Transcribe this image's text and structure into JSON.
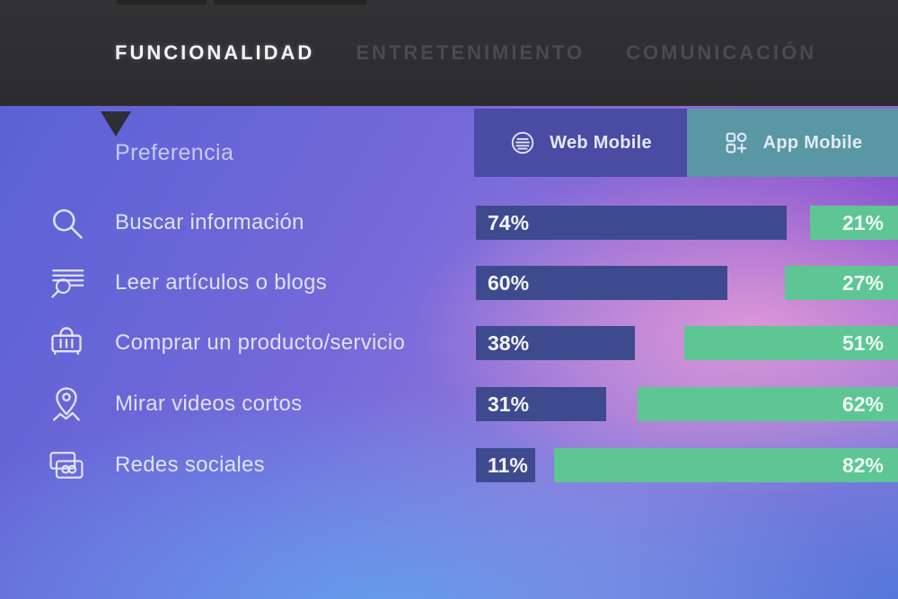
{
  "header": {
    "tabs": [
      {
        "label": "FUNCIONALIDAD",
        "active": true
      },
      {
        "label": "ENTRETENIMIENTO",
        "active": false
      },
      {
        "label": "COMUNICACIÓN",
        "active": false
      }
    ]
  },
  "section_title": "Preferencia",
  "legend": [
    {
      "label": "Web Mobile",
      "icon": "web-mobile-lines-icon",
      "color": "#4a4ba3"
    },
    {
      "label": "App Mobile",
      "icon": "app-mobile-grid-icon",
      "color": "#5897a3"
    }
  ],
  "chart_data": {
    "type": "bar",
    "orientation": "horizontal",
    "title": "Preferencia",
    "categories": [
      "Buscar información",
      "Leer artículos o blogs",
      "Comprar un producto/servicio",
      "Mirar videos cortos",
      "Redes sociales"
    ],
    "category_icons": [
      "search-icon",
      "article-search-icon",
      "shopping-basket-icon",
      "location-pin-icon",
      "photo-cards-icon"
    ],
    "series": [
      {
        "name": "Web Mobile",
        "color": "#3e4a8e",
        "values": [
          74,
          60,
          38,
          31,
          11
        ]
      },
      {
        "name": "App Mobile",
        "color": "#5ec694",
        "values": [
          21,
          27,
          51,
          62,
          82
        ]
      }
    ],
    "value_suffix": "%",
    "xlim": [
      0,
      100
    ],
    "legend_position": "top-right",
    "grid": false
  },
  "colors": {
    "header_bg": "#2f2f31",
    "active_tab_text": "#f4f4f6",
    "inactive_tab_text": "#4b4b4e",
    "web_bar": "#3e4a8e",
    "app_bar": "#5ec694",
    "web_button_bg": "#4a4ba3",
    "app_button_bg": "#5897a3"
  }
}
